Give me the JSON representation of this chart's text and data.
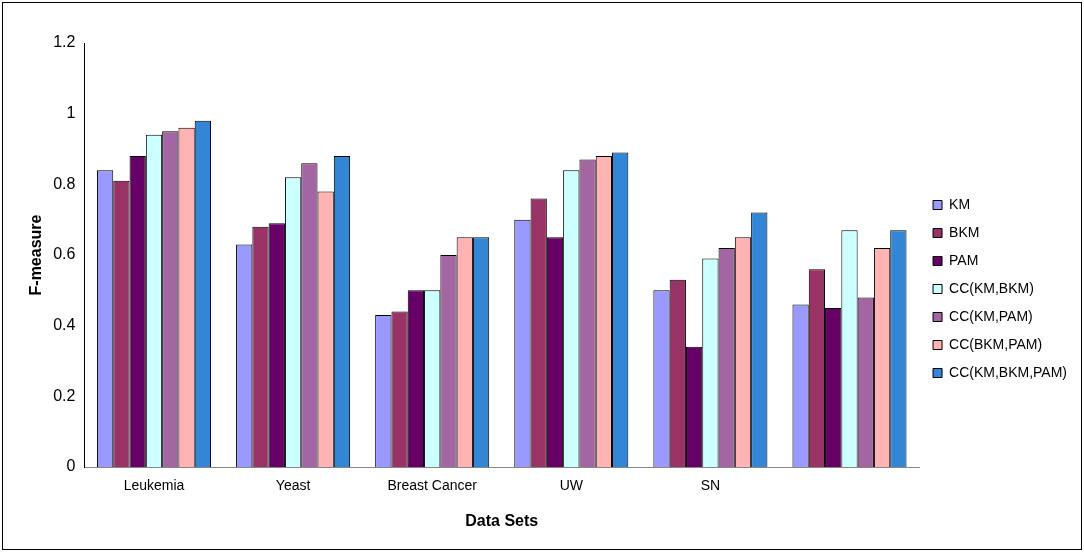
{
  "chart_data": {
    "type": "bar",
    "xlabel": "Data Sets",
    "ylabel": "F-measure",
    "categories": [
      "Leukemia",
      "Yeast",
      "Breast Cancer",
      "UW",
      "SN",
      null
    ],
    "series": [
      {
        "name": "KM",
        "color": "#9999ff",
        "values": [
          0.84,
          0.63,
          0.43,
          0.7,
          0.5,
          0.46
        ]
      },
      {
        "name": "BKM",
        "color": "#993366",
        "values": [
          0.81,
          0.68,
          0.44,
          0.76,
          0.53,
          0.56
        ]
      },
      {
        "name": "PAM",
        "color": "#660066",
        "values": [
          0.88,
          0.69,
          0.5,
          0.65,
          0.34,
          0.45
        ]
      },
      {
        "name": "CC(KM,BKM)",
        "color": "#ccffff",
        "values": [
          0.94,
          0.82,
          0.5,
          0.84,
          0.59,
          0.67
        ]
      },
      {
        "name": "CC(KM,PAM)",
        "color": "#a366a3",
        "values": [
          0.95,
          0.86,
          0.6,
          0.87,
          0.62,
          0.48
        ]
      },
      {
        "name": "CC(BKM,PAM)",
        "color": "#ffb3b3",
        "values": [
          0.96,
          0.78,
          0.65,
          0.88,
          0.65,
          0.62
        ]
      },
      {
        "name": "CC(KM,BKM,PAM)",
        "color": "#3385d6",
        "values": [
          0.98,
          0.88,
          0.65,
          0.89,
          0.72,
          0.67
        ]
      }
    ],
    "ylim": [
      0,
      1.2
    ],
    "yticks": [
      0,
      0.2,
      0.4,
      0.6,
      0.8,
      1,
      1.2
    ],
    "grid": false,
    "legend": "right"
  }
}
